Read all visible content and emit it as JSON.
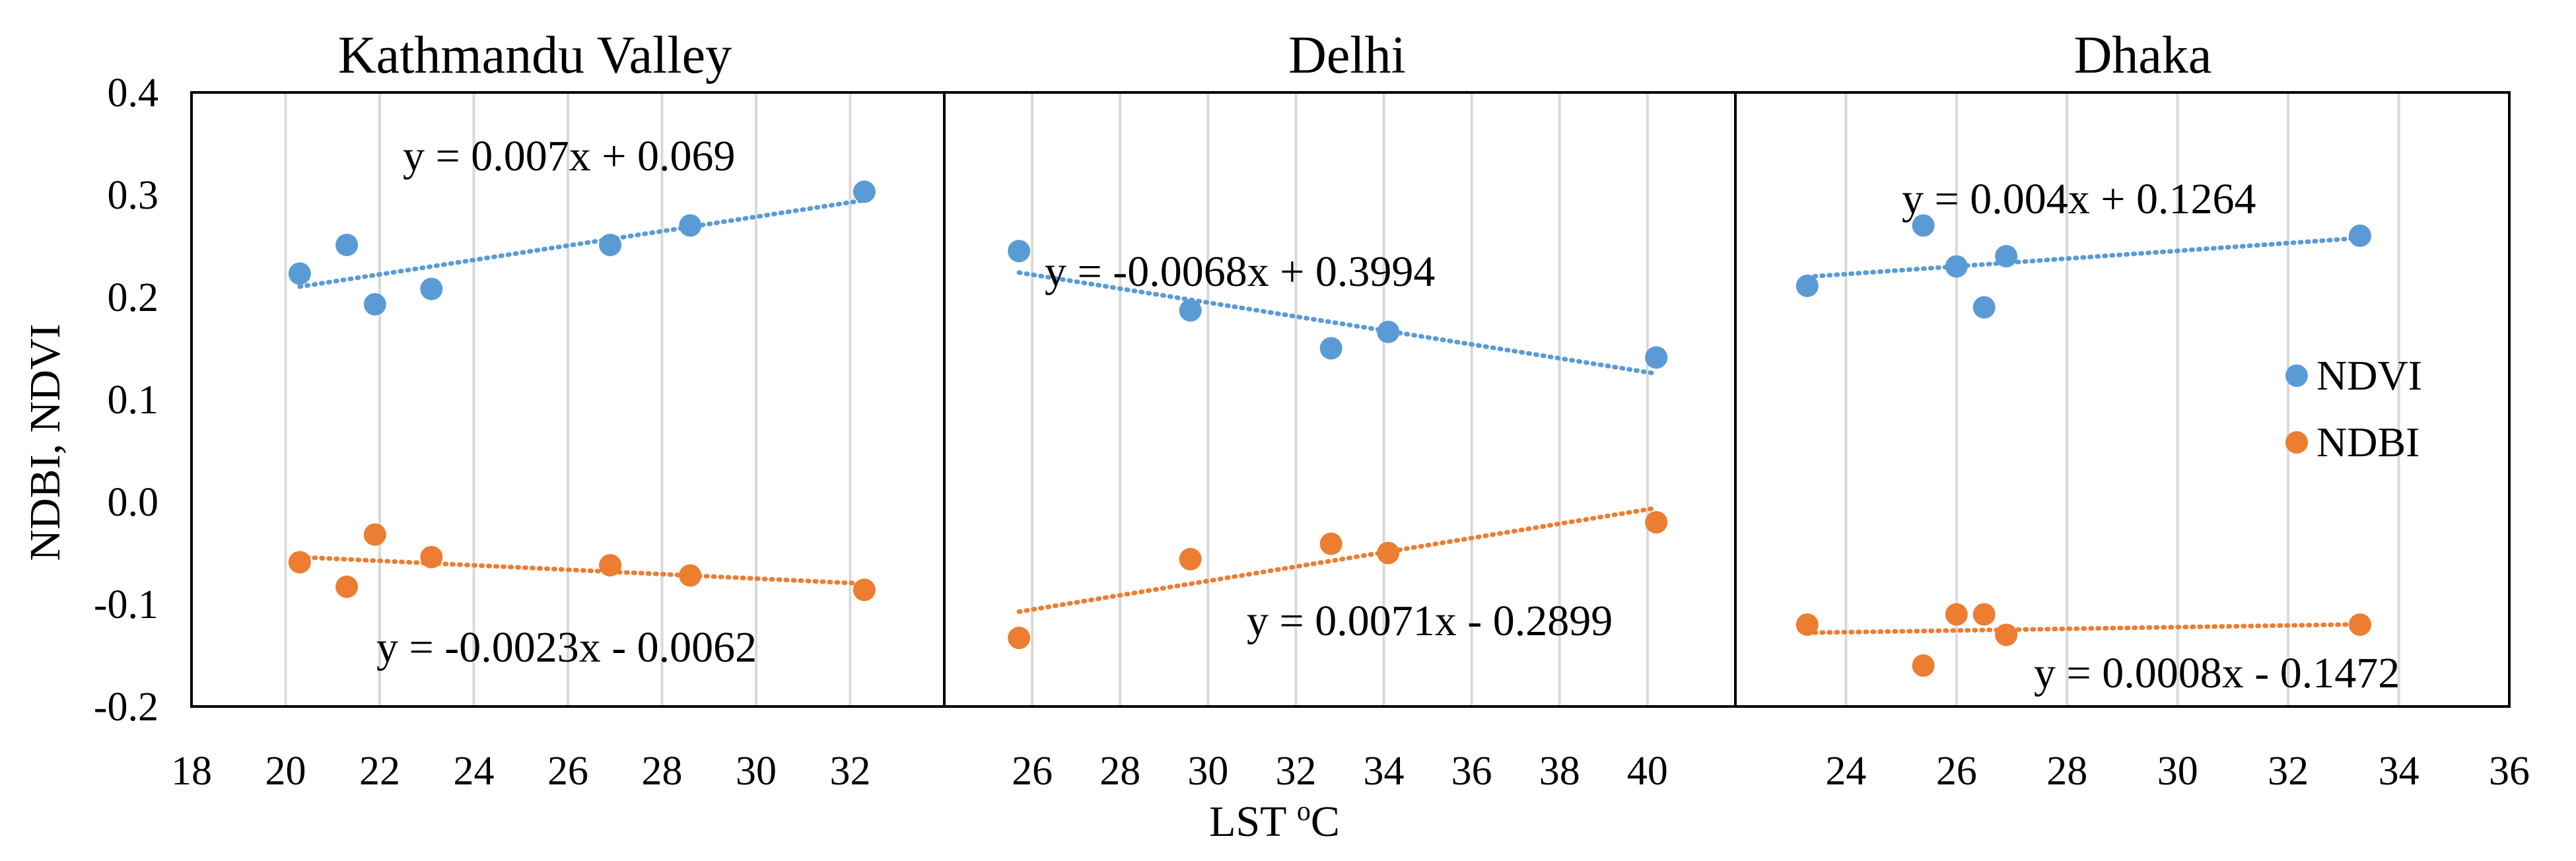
{
  "colors": {
    "ndvi": "#5B9BD5",
    "ndbi": "#ED7D31",
    "grid": "#D9D9D9",
    "frame": "#000000"
  },
  "chart_data": {
    "type": "scatter",
    "ylabel": "NDBI, NDVI",
    "xlabel_main": "LST ",
    "xlabel_sup": "o",
    "xlabel_unit": "C",
    "ylim": [
      -0.2,
      0.4
    ],
    "yticks": [
      "0.4",
      "0.3",
      "0.2",
      "0.1",
      "0.0",
      "-0.1",
      "-0.2"
    ],
    "legend": {
      "position": "right",
      "entries": [
        "NDVI",
        "NDBI"
      ]
    },
    "panels": [
      {
        "title": "Kathmandu  Valley",
        "xlim": [
          18,
          34
        ],
        "xticks": [
          "18",
          "20",
          "22",
          "24",
          "26",
          "28",
          "30",
          "32"
        ],
        "ndvi": {
          "x": [
            20.3,
            21.3,
            21.9,
            23.1,
            26.9,
            28.6,
            32.3
          ],
          "y": [
            0.223,
            0.251,
            0.193,
            0.208,
            0.251,
            0.27,
            0.303
          ],
          "trend": [
            20.3,
            32.3
          ],
          "equation": "y = 0.007x + 0.069"
        },
        "ndbi": {
          "x": [
            20.3,
            21.3,
            21.9,
            23.1,
            26.9,
            28.6,
            32.3
          ],
          "y": [
            -0.059,
            -0.083,
            -0.032,
            -0.054,
            -0.062,
            -0.072,
            -0.086
          ],
          "trend": [
            20.3,
            32.3
          ],
          "equation": "y = -0.0023x - 0.0062"
        }
      },
      {
        "title": "Delhi",
        "xlim": [
          24,
          42
        ],
        "xticks": [
          "26",
          "28",
          "30",
          "32",
          "34",
          "36",
          "38",
          "40"
        ],
        "ndvi": {
          "x": [
            25.7,
            29.6,
            32.8,
            34.1,
            40.2
          ],
          "y": [
            0.245,
            0.187,
            0.15,
            0.166,
            0.141
          ],
          "trend": [
            25.7,
            40.2
          ],
          "equation": "y = -0.0068x + 0.3994"
        },
        "ndbi": {
          "x": [
            25.7,
            29.6,
            32.8,
            34.1,
            40.2
          ],
          "y": [
            -0.133,
            -0.056,
            -0.041,
            -0.05,
            -0.02
          ],
          "trend": [
            25.7,
            40.2
          ],
          "equation": "y = 0.0071x - 0.2899"
        }
      },
      {
        "title": "Dhaka",
        "xlim": [
          22,
          36
        ],
        "xticks": [
          "24",
          "26",
          "28",
          "30",
          "32",
          "34",
          "36"
        ],
        "ndvi": {
          "x": [
            23.3,
            25.4,
            26.0,
            26.5,
            26.9,
            33.3
          ],
          "y": [
            0.211,
            0.27,
            0.23,
            0.19,
            0.24,
            0.26
          ],
          "trend": [
            23.3,
            33.3
          ],
          "equation": "y = 0.004x + 0.1264"
        },
        "ndbi": {
          "x": [
            23.3,
            25.4,
            26.0,
            26.5,
            26.9,
            33.3
          ],
          "y": [
            -0.12,
            -0.16,
            -0.11,
            -0.11,
            -0.13,
            -0.12
          ],
          "trend": [
            23.3,
            33.3
          ],
          "equation": "y = 0.0008x - 0.1472"
        }
      }
    ]
  }
}
